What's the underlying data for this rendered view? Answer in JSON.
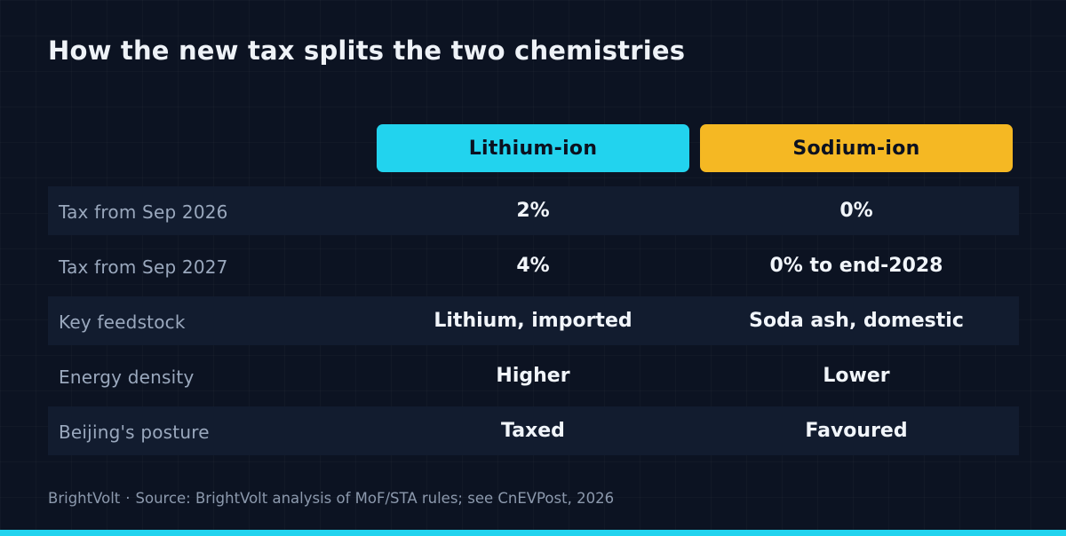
{
  "title": "How the new tax splits the two chemistries",
  "columns": {
    "lithium": "Lithium-ion",
    "sodium": "Sodium-ion"
  },
  "rows": [
    {
      "label": "Tax from Sep 2026",
      "lithium": "2%",
      "sodium": "0%"
    },
    {
      "label": "Tax from Sep 2027",
      "lithium": "4%",
      "sodium": "0% to end-2028"
    },
    {
      "label": "Key feedstock",
      "lithium": "Lithium, imported",
      "sodium": "Soda ash, domestic"
    },
    {
      "label": "Energy density",
      "lithium": "Higher",
      "sodium": "Lower"
    },
    {
      "label": "Beijing's posture",
      "lithium": "Taxed",
      "sodium": "Favoured"
    }
  ],
  "footer": {
    "brand": "BrightVolt",
    "separator": "·",
    "source": "Source: BrightVolt analysis of MoF/STA rules; see CnEVPost, 2026"
  },
  "colors": {
    "lithium_accent": "#22d3ee",
    "sodium_accent": "#f5b823",
    "background": "#0c1322"
  }
}
